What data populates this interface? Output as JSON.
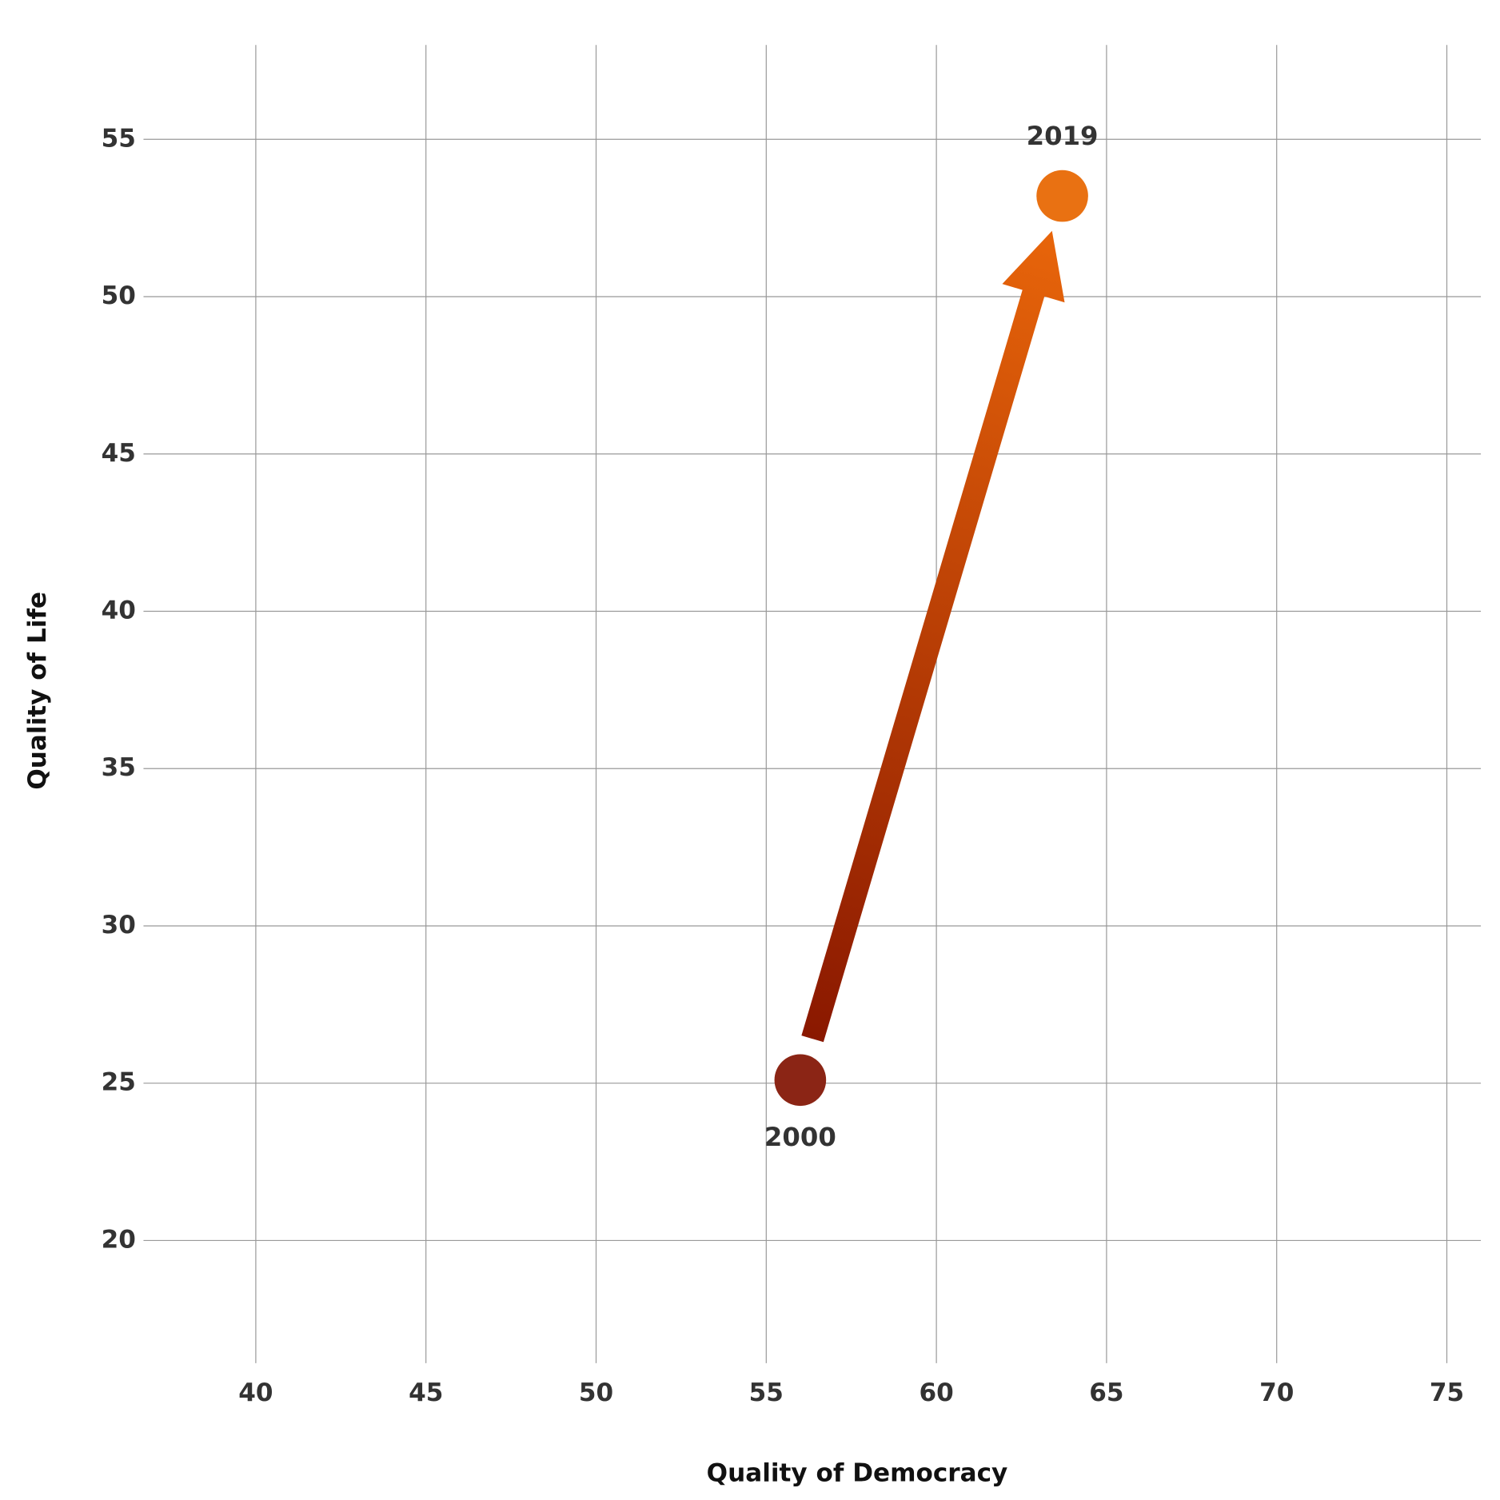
{
  "chart_data": {
    "type": "scatter",
    "x_label": "Quality of Democracy",
    "y_label": "Quality of Life",
    "xlim": [
      36.7,
      76.0
    ],
    "ylim": [
      16.1,
      58.0
    ],
    "xticks": [
      40,
      45,
      50,
      55,
      60,
      65,
      70,
      75
    ],
    "yticks": [
      20,
      25,
      30,
      35,
      40,
      45,
      50,
      55
    ],
    "grid": true,
    "x": [
      56.0,
      63.7
    ],
    "values": [
      25.1,
      53.2
    ],
    "point_labels": [
      "2000",
      "2019"
    ],
    "colors": [
      "#8b2515",
      "#e97112"
    ]
  }
}
